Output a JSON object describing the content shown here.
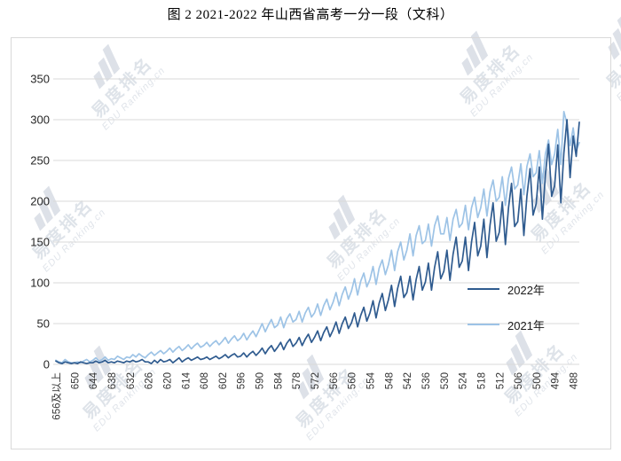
{
  "page_title": "图 2 2021-2022 年山西省高考一分一段（文科）",
  "watermark": {
    "text_cn": "易度排名",
    "text_en": "EDU Ranking.cn"
  },
  "chart_data": {
    "type": "line",
    "title": "图 2 2021-2022 年山西省高考一分一段（文科）",
    "grid": "horizontal",
    "legend_position": "inside-right",
    "x_axis": {
      "tick_labels": [
        "656及以上",
        "650",
        "644",
        "638",
        "632",
        "626",
        "620",
        "614",
        "608",
        "602",
        "596",
        "590",
        "584",
        "578",
        "572",
        "566",
        "560",
        "554",
        "548",
        "542",
        "536",
        "530",
        "524",
        "518",
        "512",
        "506",
        "500",
        "494",
        "488"
      ],
      "tick_every": 6,
      "note": "one data point per score, descending from 656及以上 to 486"
    },
    "y_axis": {
      "min": 0,
      "max": 350,
      "tick_step": 50,
      "ticks": [
        0,
        50,
        100,
        150,
        200,
        250,
        300,
        350
      ]
    },
    "series": [
      {
        "name": "2022年",
        "color": "#2f5b8f",
        "values": [
          4,
          2,
          1,
          3,
          2,
          1,
          2,
          1,
          3,
          2,
          1,
          2,
          2,
          4,
          2,
          3,
          5,
          2,
          3,
          2,
          4,
          3,
          2,
          4,
          3,
          5,
          3,
          4,
          6,
          3,
          3,
          1,
          5,
          2,
          6,
          3,
          4,
          6,
          2,
          5,
          8,
          3,
          6,
          8,
          5,
          7,
          9,
          6,
          7,
          9,
          6,
          8,
          10,
          7,
          9,
          12,
          8,
          11,
          13,
          9,
          10,
          14,
          9,
          13,
          16,
          11,
          15,
          20,
          13,
          19,
          23,
          16,
          21,
          27,
          18,
          26,
          31,
          22,
          26,
          33,
          23,
          31,
          37,
          27,
          33,
          41,
          29,
          39,
          46,
          34,
          42,
          52,
          38,
          50,
          58,
          44,
          51,
          63,
          46,
          60,
          70,
          53,
          63,
          78,
          57,
          75,
          87,
          66,
          79,
          97,
          71,
          93,
          108,
          82,
          88,
          108,
          79,
          104,
          120,
          91,
          101,
          124,
          91,
          119,
          138,
          105,
          114,
          140,
          103,
          135,
          156,
          119,
          127,
          156,
          115,
          150,
          174,
          133,
          145,
          178,
          131,
          171,
          198,
          151,
          162,
          199,
          147,
          192,
          222,
          169,
          175,
          215,
          158,
          207,
          240,
          183,
          197,
          242,
          178,
          233,
          270,
          206,
          219,
          269,
          198,
          259,
          300,
          229,
          280,
          255,
          297
        ]
      },
      {
        "name": "2021年",
        "color": "#9dc3e6",
        "values": [
          5,
          3,
          2,
          6,
          3,
          2,
          2,
          3,
          2,
          4,
          6,
          3,
          5,
          8,
          4,
          6,
          9,
          5,
          7,
          6,
          10,
          8,
          6,
          9,
          8,
          12,
          9,
          13,
          10,
          8,
          12,
          15,
          11,
          14,
          17,
          13,
          16,
          20,
          15,
          19,
          22,
          17,
          20,
          24,
          19,
          23,
          26,
          21,
          23,
          27,
          22,
          26,
          29,
          24,
          28,
          33,
          26,
          31,
          35,
          29,
          32,
          38,
          30,
          36,
          41,
          34,
          42,
          50,
          40,
          48,
          55,
          45,
          48,
          58,
          45,
          56,
          62,
          52,
          55,
          65,
          52,
          63,
          70,
          58,
          63,
          74,
          60,
          72,
          80,
          67,
          76,
          88,
          72,
          86,
          95,
          80,
          90,
          105,
          85,
          102,
          112,
          95,
          104,
          120,
          98,
          118,
          128,
          110,
          122,
          140,
          115,
          138,
          150,
          128,
          140,
          160,
          133,
          158,
          170,
          148,
          152,
          172,
          145,
          170,
          182,
          160,
          160,
          180,
          152,
          178,
          190,
          168,
          173,
          195,
          165,
          192,
          205,
          180,
          192,
          215,
          182,
          212,
          226,
          200,
          205,
          230,
          195,
          228,
          242,
          215,
          220,
          246,
          208,
          243,
          258,
          230,
          235,
          262,
          222,
          258,
          275,
          245,
          258,
          288,
          245,
          310,
          295,
          268,
          290,
          262,
          272
        ]
      }
    ]
  }
}
